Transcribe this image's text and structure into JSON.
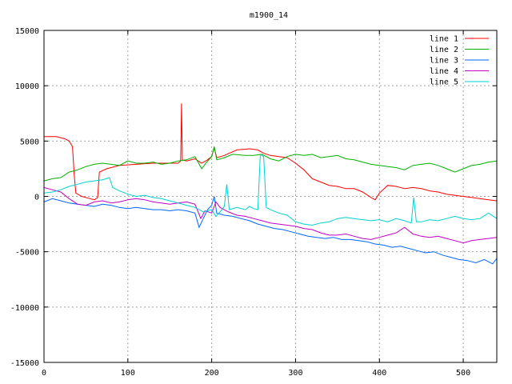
{
  "chart_data": {
    "type": "line",
    "title": "m1900_14",
    "xlabel": "",
    "ylabel": "",
    "xlim": [
      0,
      540
    ],
    "ylim": [
      -15000,
      15000
    ],
    "x_ticks": [
      0,
      100,
      200,
      300,
      400,
      500
    ],
    "y_ticks": [
      -15000,
      -10000,
      -5000,
      0,
      5000,
      10000,
      15000
    ],
    "grid": true,
    "legend_position": "top-right",
    "series": [
      {
        "name": "line 1",
        "color": "#ff0000",
        "points": [
          [
            0,
            5400
          ],
          [
            15,
            5400
          ],
          [
            25,
            5200
          ],
          [
            30,
            5000
          ],
          [
            34,
            4500
          ],
          [
            36,
            2000
          ],
          [
            38,
            300
          ],
          [
            45,
            0
          ],
          [
            55,
            -200
          ],
          [
            60,
            -300
          ],
          [
            64,
            -100
          ],
          [
            66,
            2200
          ],
          [
            75,
            2500
          ],
          [
            90,
            2800
          ],
          [
            110,
            2900
          ],
          [
            130,
            3000
          ],
          [
            150,
            3000
          ],
          [
            160,
            3000
          ],
          [
            163,
            3200
          ],
          [
            164,
            8400
          ],
          [
            165,
            3300
          ],
          [
            170,
            3200
          ],
          [
            180,
            3400
          ],
          [
            188,
            3000
          ],
          [
            195,
            3300
          ],
          [
            200,
            3600
          ],
          [
            203,
            4400
          ],
          [
            206,
            3500
          ],
          [
            215,
            3700
          ],
          [
            230,
            4200
          ],
          [
            245,
            4300
          ],
          [
            255,
            4200
          ],
          [
            262,
            3900
          ],
          [
            270,
            3700
          ],
          [
            280,
            3600
          ],
          [
            290,
            3500
          ],
          [
            300,
            3000
          ],
          [
            310,
            2400
          ],
          [
            320,
            1600
          ],
          [
            330,
            1300
          ],
          [
            340,
            1000
          ],
          [
            350,
            900
          ],
          [
            360,
            700
          ],
          [
            370,
            700
          ],
          [
            380,
            400
          ],
          [
            390,
            -100
          ],
          [
            395,
            -300
          ],
          [
            400,
            300
          ],
          [
            410,
            1000
          ],
          [
            420,
            900
          ],
          [
            430,
            700
          ],
          [
            440,
            800
          ],
          [
            450,
            700
          ],
          [
            460,
            500
          ],
          [
            470,
            400
          ],
          [
            480,
            200
          ],
          [
            490,
            100
          ],
          [
            500,
            0
          ],
          [
            510,
            -100
          ],
          [
            520,
            -200
          ],
          [
            530,
            -300
          ],
          [
            540,
            -400
          ]
        ]
      },
      {
        "name": "line 2",
        "color": "#00b000",
        "points": [
          [
            0,
            1400
          ],
          [
            10,
            1600
          ],
          [
            20,
            1700
          ],
          [
            30,
            2200
          ],
          [
            40,
            2400
          ],
          [
            50,
            2700
          ],
          [
            60,
            2900
          ],
          [
            70,
            3000
          ],
          [
            80,
            2900
          ],
          [
            90,
            2800
          ],
          [
            100,
            3200
          ],
          [
            110,
            3000
          ],
          [
            120,
            3000
          ],
          [
            130,
            3100
          ],
          [
            140,
            2900
          ],
          [
            150,
            3000
          ],
          [
            160,
            3200
          ],
          [
            170,
            3300
          ],
          [
            180,
            3600
          ],
          [
            188,
            2500
          ],
          [
            193,
            3000
          ],
          [
            200,
            3600
          ],
          [
            203,
            4500
          ],
          [
            206,
            3300
          ],
          [
            215,
            3500
          ],
          [
            225,
            3800
          ],
          [
            240,
            3700
          ],
          [
            250,
            3700
          ],
          [
            260,
            3800
          ],
          [
            270,
            3400
          ],
          [
            280,
            3200
          ],
          [
            290,
            3600
          ],
          [
            300,
            3800
          ],
          [
            310,
            3700
          ],
          [
            320,
            3800
          ],
          [
            330,
            3500
          ],
          [
            340,
            3600
          ],
          [
            350,
            3700
          ],
          [
            360,
            3400
          ],
          [
            370,
            3300
          ],
          [
            380,
            3100
          ],
          [
            390,
            2900
          ],
          [
            400,
            2800
          ],
          [
            410,
            2700
          ],
          [
            420,
            2600
          ],
          [
            430,
            2400
          ],
          [
            440,
            2800
          ],
          [
            450,
            2900
          ],
          [
            460,
            3000
          ],
          [
            470,
            2800
          ],
          [
            480,
            2500
          ],
          [
            490,
            2200
          ],
          [
            500,
            2500
          ],
          [
            510,
            2800
          ],
          [
            520,
            2900
          ],
          [
            530,
            3100
          ],
          [
            540,
            3200
          ]
        ]
      },
      {
        "name": "line 3",
        "color": "#0066ff",
        "points": [
          [
            0,
            -500
          ],
          [
            10,
            -200
          ],
          [
            20,
            -400
          ],
          [
            30,
            -600
          ],
          [
            40,
            -700
          ],
          [
            50,
            -800
          ],
          [
            60,
            -900
          ],
          [
            70,
            -700
          ],
          [
            80,
            -800
          ],
          [
            90,
            -1000
          ],
          [
            100,
            -1100
          ],
          [
            110,
            -1000
          ],
          [
            120,
            -1100
          ],
          [
            130,
            -1200
          ],
          [
            140,
            -1200
          ],
          [
            150,
            -1300
          ],
          [
            160,
            -1200
          ],
          [
            170,
            -1300
          ],
          [
            180,
            -1500
          ],
          [
            185,
            -2800
          ],
          [
            190,
            -2000
          ],
          [
            195,
            -1200
          ],
          [
            200,
            -800
          ],
          [
            203,
            0
          ],
          [
            206,
            -1500
          ],
          [
            215,
            -1700
          ],
          [
            225,
            -1800
          ],
          [
            235,
            -2000
          ],
          [
            245,
            -2200
          ],
          [
            255,
            -2500
          ],
          [
            265,
            -2700
          ],
          [
            275,
            -2900
          ],
          [
            285,
            -3000
          ],
          [
            295,
            -3200
          ],
          [
            305,
            -3400
          ],
          [
            315,
            -3600
          ],
          [
            325,
            -3700
          ],
          [
            335,
            -3800
          ],
          [
            345,
            -3700
          ],
          [
            355,
            -3900
          ],
          [
            365,
            -3900
          ],
          [
            375,
            -4000
          ],
          [
            385,
            -4100
          ],
          [
            395,
            -4300
          ],
          [
            405,
            -4400
          ],
          [
            415,
            -4600
          ],
          [
            425,
            -4500
          ],
          [
            435,
            -4700
          ],
          [
            445,
            -4900
          ],
          [
            455,
            -5100
          ],
          [
            465,
            -5000
          ],
          [
            475,
            -5300
          ],
          [
            485,
            -5500
          ],
          [
            495,
            -5700
          ],
          [
            505,
            -5800
          ],
          [
            515,
            -6000
          ],
          [
            525,
            -5700
          ],
          [
            535,
            -6100
          ],
          [
            540,
            -5600
          ]
        ]
      },
      {
        "name": "line 4",
        "color": "#c000c0",
        "points": [
          [
            0,
            800
          ],
          [
            10,
            600
          ],
          [
            20,
            400
          ],
          [
            30,
            -200
          ],
          [
            40,
            -700
          ],
          [
            50,
            -800
          ],
          [
            60,
            -500
          ],
          [
            70,
            -400
          ],
          [
            80,
            -600
          ],
          [
            90,
            -500
          ],
          [
            100,
            -300
          ],
          [
            110,
            -200
          ],
          [
            120,
            -300
          ],
          [
            130,
            -500
          ],
          [
            140,
            -600
          ],
          [
            150,
            -700
          ],
          [
            160,
            -600
          ],
          [
            170,
            -500
          ],
          [
            180,
            -700
          ],
          [
            187,
            -2000
          ],
          [
            192,
            -1300
          ],
          [
            200,
            -1500
          ],
          [
            205,
            -500
          ],
          [
            210,
            -1000
          ],
          [
            220,
            -1400
          ],
          [
            230,
            -1700
          ],
          [
            240,
            -1800
          ],
          [
            250,
            -2000
          ],
          [
            260,
            -2200
          ],
          [
            270,
            -2400
          ],
          [
            280,
            -2500
          ],
          [
            290,
            -2600
          ],
          [
            300,
            -2700
          ],
          [
            310,
            -2900
          ],
          [
            320,
            -3000
          ],
          [
            330,
            -3300
          ],
          [
            340,
            -3500
          ],
          [
            350,
            -3500
          ],
          [
            360,
            -3400
          ],
          [
            370,
            -3600
          ],
          [
            380,
            -3800
          ],
          [
            390,
            -3900
          ],
          [
            400,
            -3700
          ],
          [
            410,
            -3500
          ],
          [
            420,
            -3300
          ],
          [
            430,
            -2800
          ],
          [
            440,
            -3400
          ],
          [
            450,
            -3600
          ],
          [
            460,
            -3700
          ],
          [
            470,
            -3600
          ],
          [
            480,
            -3800
          ],
          [
            490,
            -4000
          ],
          [
            500,
            -4200
          ],
          [
            510,
            -4000
          ],
          [
            520,
            -3900
          ],
          [
            530,
            -3800
          ],
          [
            540,
            -3700
          ]
        ]
      },
      {
        "name": "line 5",
        "color": "#00d0d0",
        "points": [
          [
            0,
            300
          ],
          [
            10,
            400
          ],
          [
            20,
            600
          ],
          [
            30,
            900
          ],
          [
            40,
            1100
          ],
          [
            50,
            1300
          ],
          [
            60,
            1400
          ],
          [
            70,
            1500
          ],
          [
            78,
            1700
          ],
          [
            82,
            800
          ],
          [
            90,
            500
          ],
          [
            100,
            200
          ],
          [
            110,
            0
          ],
          [
            120,
            100
          ],
          [
            130,
            -100
          ],
          [
            140,
            -200
          ],
          [
            150,
            -400
          ],
          [
            160,
            -600
          ],
          [
            170,
            -800
          ],
          [
            180,
            -1000
          ],
          [
            190,
            -1400
          ],
          [
            200,
            -1200
          ],
          [
            205,
            -1800
          ],
          [
            210,
            -1400
          ],
          [
            215,
            -900
          ],
          [
            218,
            1100
          ],
          [
            221,
            -1200
          ],
          [
            230,
            -1000
          ],
          [
            240,
            -1200
          ],
          [
            245,
            -900
          ],
          [
            250,
            -1100
          ],
          [
            255,
            -1200
          ],
          [
            258,
            3800
          ],
          [
            262,
            3600
          ],
          [
            265,
            -1000
          ],
          [
            270,
            -1200
          ],
          [
            280,
            -1500
          ],
          [
            290,
            -1700
          ],
          [
            300,
            -2300
          ],
          [
            310,
            -2500
          ],
          [
            320,
            -2600
          ],
          [
            330,
            -2400
          ],
          [
            340,
            -2300
          ],
          [
            350,
            -2000
          ],
          [
            360,
            -1900
          ],
          [
            370,
            -2000
          ],
          [
            380,
            -2100
          ],
          [
            390,
            -2200
          ],
          [
            400,
            -2100
          ],
          [
            410,
            -2300
          ],
          [
            420,
            -2000
          ],
          [
            430,
            -2200
          ],
          [
            438,
            -2400
          ],
          [
            441,
            -100
          ],
          [
            444,
            -2300
          ],
          [
            450,
            -2300
          ],
          [
            460,
            -2100
          ],
          [
            470,
            -2200
          ],
          [
            480,
            -2000
          ],
          [
            490,
            -1800
          ],
          [
            500,
            -2000
          ],
          [
            510,
            -2100
          ],
          [
            520,
            -2000
          ],
          [
            530,
            -1500
          ],
          [
            540,
            -2000
          ]
        ]
      }
    ]
  }
}
